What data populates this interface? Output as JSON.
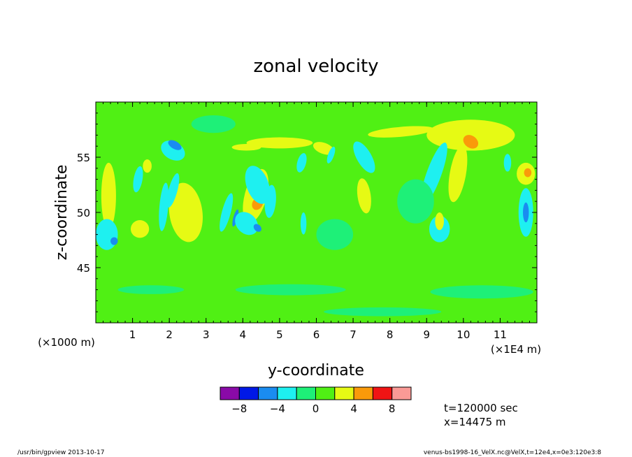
{
  "chart_data": {
    "type": "heatmap",
    "title": "zonal velocity",
    "xlabel": "y-coordinate",
    "ylabel": "z-coordinate",
    "x_unit_note_left": "(×1000 m)",
    "x_unit_note_right": "(×1E4 m)",
    "xlim": [
      0.0,
      12.0
    ],
    "ylim": [
      40.0,
      60.0
    ],
    "x_ticks": [
      1,
      2,
      3,
      4,
      5,
      6,
      7,
      8,
      9,
      10,
      11
    ],
    "y_ticks": [
      45,
      50,
      55
    ],
    "x_tick_labels": [
      "1",
      "2",
      "3",
      "4",
      "5",
      "6",
      "7",
      "8",
      "9",
      "10",
      "11"
    ],
    "y_tick_labels": [
      "45",
      "50",
      "55"
    ],
    "colorbar": {
      "levels": [
        -10,
        -8,
        -6,
        -4,
        -2,
        0,
        2,
        4,
        6,
        8,
        10
      ],
      "colors": [
        "#8a0aa8",
        "#0018e6",
        "#1a8cf0",
        "#1ef0f0",
        "#1ef078",
        "#50f014",
        "#e6fa14",
        "#fa9a0a",
        "#f01414",
        "#fa9a96"
      ],
      "tick_values": [
        -8,
        -4,
        0,
        4,
        8
      ],
      "tick_labels": [
        "−8",
        "−4",
        "0",
        "4",
        "8"
      ]
    },
    "annotations": {
      "time": "t=120000 sec",
      "xpos": "x=14475 m",
      "footer_left": "/usr/bin/gpview  2013-10-17",
      "footer_right": "venus-bs1998-16_VelX.nc@VelX,t=12e4,x=0e3:120e3:8"
    },
    "background_value": 1,
    "features": [
      {
        "x": 2.1,
        "z": 55.6,
        "rx": 0.35,
        "rz": 0.8,
        "value": -3,
        "rot": 30
      },
      {
        "x": 2.15,
        "z": 56.1,
        "rx": 0.2,
        "rz": 0.35,
        "value": -5,
        "rot": 30
      },
      {
        "x": 1.4,
        "z": 54.2,
        "rx": 0.12,
        "rz": 0.6,
        "value": 3,
        "rot": 0
      },
      {
        "x": 0.35,
        "z": 51.5,
        "rx": 0.2,
        "rz": 3.0,
        "value": 3,
        "rot": 0
      },
      {
        "x": 0.3,
        "z": 48.0,
        "rx": 0.3,
        "rz": 1.4,
        "value": -3,
        "rot": 0
      },
      {
        "x": 0.5,
        "z": 47.4,
        "rx": 0.1,
        "rz": 0.35,
        "value": -5,
        "rot": 0
      },
      {
        "x": 1.2,
        "z": 48.5,
        "rx": 0.25,
        "rz": 0.8,
        "value": 3,
        "rot": 0
      },
      {
        "x": 1.15,
        "z": 53.0,
        "rx": 0.12,
        "rz": 1.2,
        "value": -3,
        "rot": 10
      },
      {
        "x": 2.45,
        "z": 50.0,
        "rx": 0.45,
        "rz": 2.7,
        "value": 3,
        "rot": -8
      },
      {
        "x": 2.1,
        "z": 52.0,
        "rx": 0.12,
        "rz": 1.6,
        "value": -3,
        "rot": 15
      },
      {
        "x": 1.85,
        "z": 50.5,
        "rx": 0.12,
        "rz": 2.2,
        "value": -3,
        "rot": 5
      },
      {
        "x": 3.55,
        "z": 50.0,
        "rx": 0.12,
        "rz": 1.8,
        "value": -3,
        "rot": 15
      },
      {
        "x": 3.8,
        "z": 49.5,
        "rx": 0.06,
        "rz": 0.8,
        "value": -5,
        "rot": 15
      },
      {
        "x": 4.35,
        "z": 51.5,
        "rx": 0.3,
        "rz": 2.5,
        "value": 3,
        "rot": 15
      },
      {
        "x": 4.4,
        "z": 50.8,
        "rx": 0.14,
        "rz": 0.6,
        "value": 5,
        "rot": 30
      },
      {
        "x": 4.4,
        "z": 52.5,
        "rx": 0.3,
        "rz": 1.8,
        "value": -3,
        "rot": -20
      },
      {
        "x": 4.1,
        "z": 49.0,
        "rx": 0.35,
        "rz": 0.9,
        "value": -3,
        "rot": 45
      },
      {
        "x": 4.4,
        "z": 48.6,
        "rx": 0.12,
        "rz": 0.3,
        "value": -5,
        "rot": 45
      },
      {
        "x": 5.0,
        "z": 56.3,
        "rx": 0.9,
        "rz": 0.5,
        "value": 3,
        "rot": 0
      },
      {
        "x": 4.1,
        "z": 55.9,
        "rx": 0.4,
        "rz": 0.3,
        "value": 3,
        "rot": 0
      },
      {
        "x": 6.2,
        "z": 55.8,
        "rx": 0.3,
        "rz": 0.5,
        "value": 3,
        "rot": 20
      },
      {
        "x": 5.6,
        "z": 54.5,
        "rx": 0.12,
        "rz": 0.9,
        "value": -3,
        "rot": 15
      },
      {
        "x": 4.75,
        "z": 51.0,
        "rx": 0.15,
        "rz": 1.5,
        "value": -3,
        "rot": 5
      },
      {
        "x": 5.65,
        "z": 49.0,
        "rx": 0.08,
        "rz": 1.0,
        "value": -3,
        "rot": 0
      },
      {
        "x": 7.3,
        "z": 55.0,
        "rx": 0.2,
        "rz": 1.6,
        "value": -3,
        "rot": -30
      },
      {
        "x": 7.3,
        "z": 51.5,
        "rx": 0.18,
        "rz": 1.6,
        "value": 3,
        "rot": -8
      },
      {
        "x": 6.4,
        "z": 55.2,
        "rx": 0.08,
        "rz": 0.8,
        "value": -3,
        "rot": 20
      },
      {
        "x": 8.3,
        "z": 57.3,
        "rx": 0.9,
        "rz": 0.45,
        "value": 3,
        "rot": -5
      },
      {
        "x": 10.2,
        "z": 57.0,
        "rx": 1.2,
        "rz": 1.4,
        "value": 3,
        "rot": 0
      },
      {
        "x": 10.2,
        "z": 56.4,
        "rx": 0.22,
        "rz": 0.55,
        "value": 5,
        "rot": 35
      },
      {
        "x": 9.85,
        "z": 53.5,
        "rx": 0.22,
        "rz": 2.6,
        "value": 3,
        "rot": 10
      },
      {
        "x": 9.2,
        "z": 53.5,
        "rx": 0.2,
        "rz": 3.0,
        "value": -3,
        "rot": 20
      },
      {
        "x": 9.35,
        "z": 48.5,
        "rx": 0.28,
        "rz": 1.2,
        "value": -3,
        "rot": 0
      },
      {
        "x": 9.35,
        "z": 49.2,
        "rx": 0.12,
        "rz": 0.8,
        "value": 3,
        "rot": 0
      },
      {
        "x": 11.7,
        "z": 53.5,
        "rx": 0.25,
        "rz": 1.0,
        "value": 3,
        "rot": 0
      },
      {
        "x": 11.75,
        "z": 53.6,
        "rx": 0.1,
        "rz": 0.4,
        "value": 5,
        "rot": 0
      },
      {
        "x": 11.7,
        "z": 50.0,
        "rx": 0.2,
        "rz": 2.2,
        "value": -3,
        "rot": 0
      },
      {
        "x": 11.7,
        "z": 50.0,
        "rx": 0.08,
        "rz": 0.9,
        "value": -5,
        "rot": 0
      },
      {
        "x": 11.2,
        "z": 54.5,
        "rx": 0.1,
        "rz": 0.8,
        "value": -3,
        "rot": 0
      },
      {
        "x": 1.5,
        "z": 43.0,
        "rx": 0.9,
        "rz": 0.4,
        "value": -1,
        "rot": 0
      },
      {
        "x": 5.3,
        "z": 43.0,
        "rx": 1.5,
        "rz": 0.5,
        "value": -1,
        "rot": 0
      },
      {
        "x": 10.5,
        "z": 42.8,
        "rx": 1.4,
        "rz": 0.6,
        "value": -1,
        "rot": 0
      },
      {
        "x": 7.8,
        "z": 41.0,
        "rx": 1.6,
        "rz": 0.4,
        "value": -1,
        "rot": 0
      },
      {
        "x": 3.2,
        "z": 58.0,
        "rx": 0.6,
        "rz": 0.8,
        "value": -1,
        "rot": 0
      },
      {
        "x": 6.5,
        "z": 48.0,
        "rx": 0.5,
        "rz": 1.4,
        "value": -1,
        "rot": 0
      },
      {
        "x": 8.7,
        "z": 51.0,
        "rx": 0.5,
        "rz": 2.0,
        "value": -1,
        "rot": 0
      }
    ]
  }
}
